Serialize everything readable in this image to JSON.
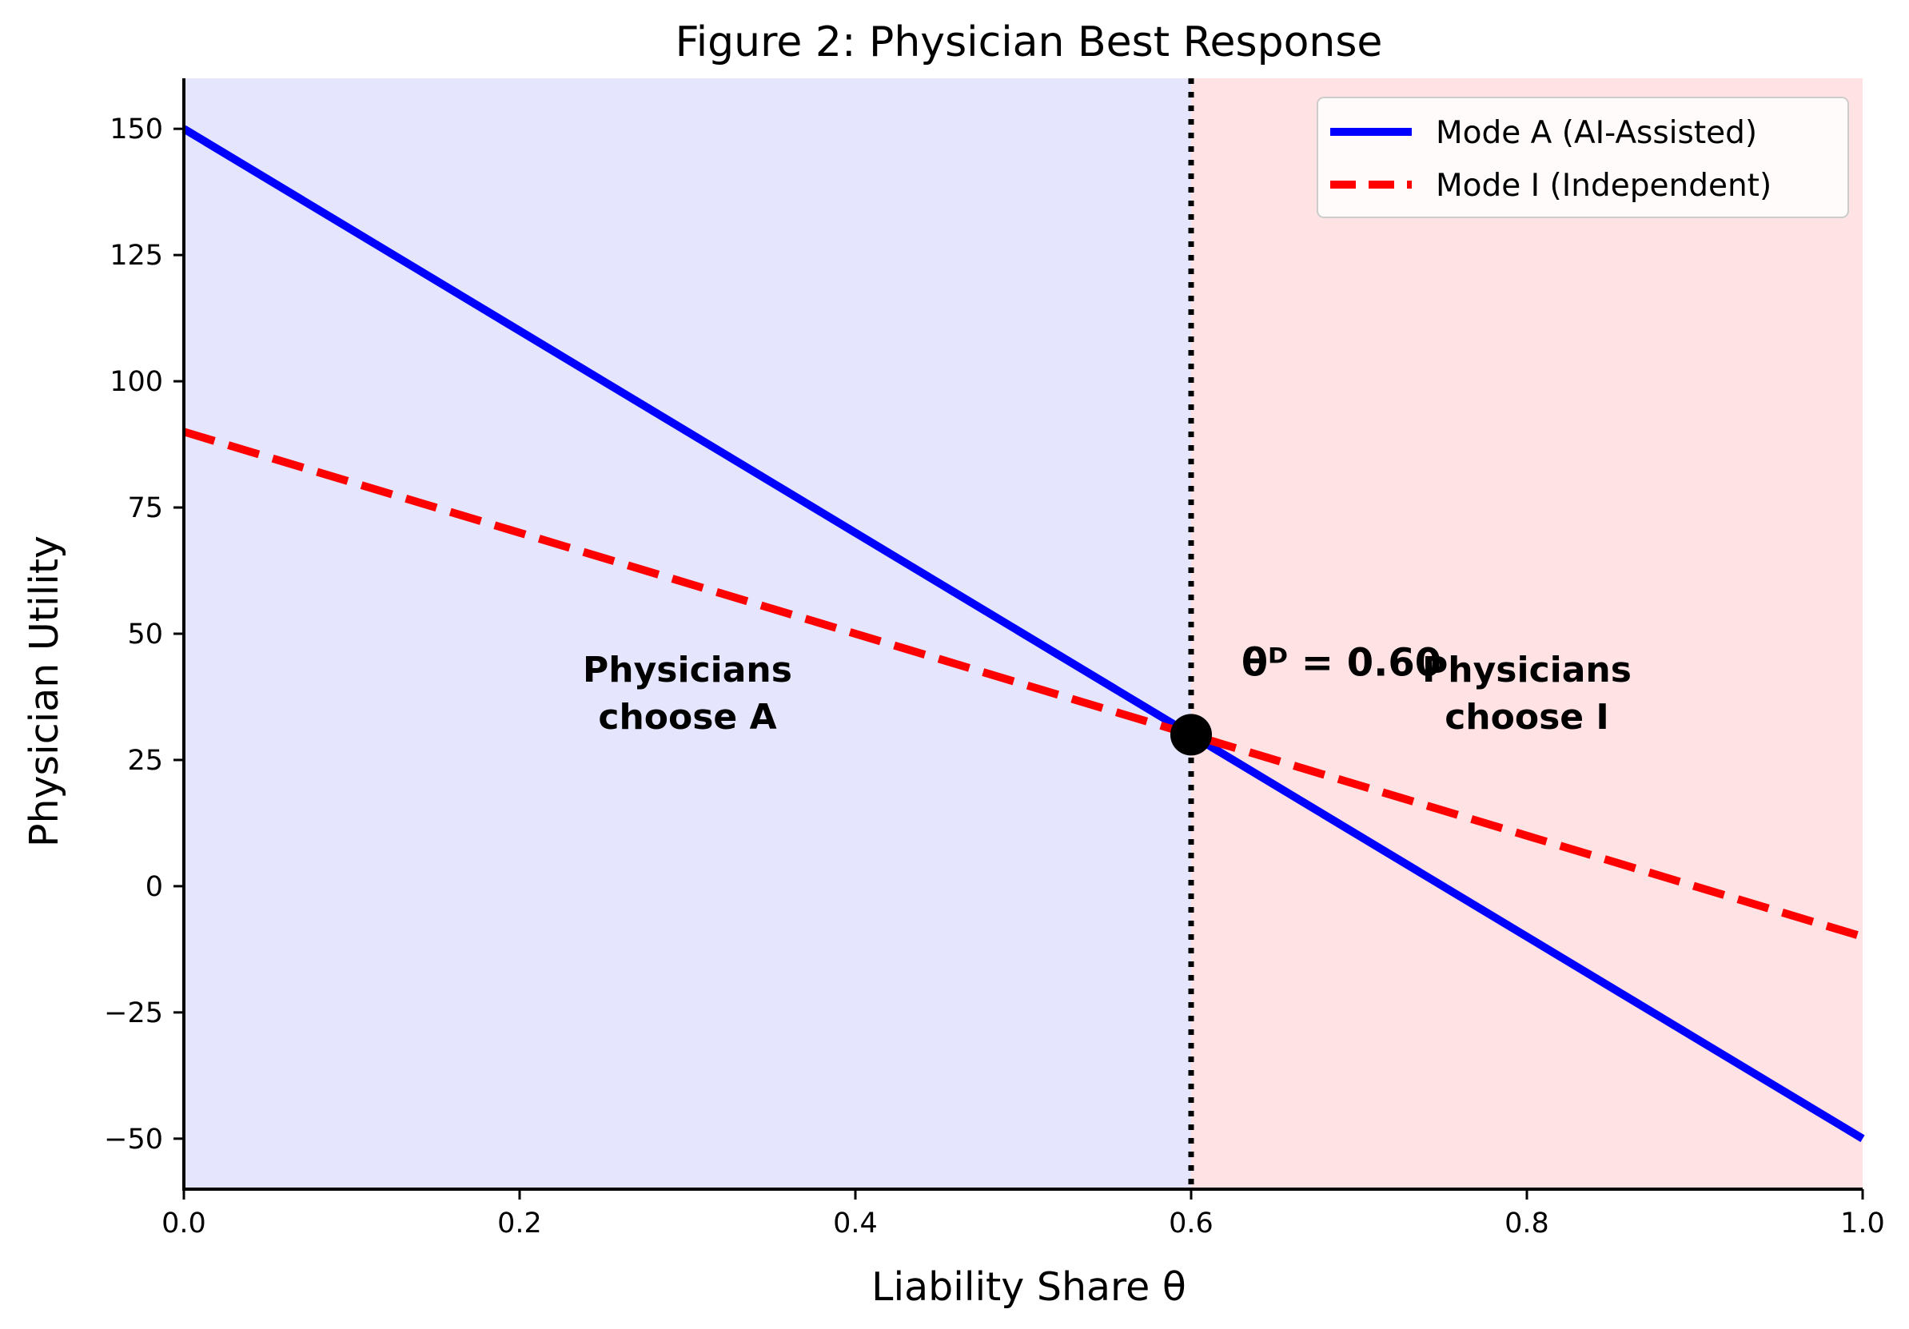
{
  "chart_data": {
    "type": "line",
    "title": "Figure 2: Physician Best Response",
    "xlabel": "Liability Share θ",
    "ylabel": "Physician Utility",
    "xlim": [
      0,
      1
    ],
    "ylim": [
      -60,
      160
    ],
    "x_ticks": [
      0.0,
      0.2,
      0.4,
      0.6,
      0.8,
      1.0
    ],
    "x_tick_labels": [
      "0.0",
      "0.2",
      "0.4",
      "0.6",
      "0.8",
      "1.0"
    ],
    "y_ticks": [
      150,
      125,
      100,
      75,
      50,
      25,
      0,
      -25,
      -50
    ],
    "y_tick_labels": [
      "150",
      "125",
      "100",
      "75",
      "50",
      "25",
      "0",
      "−25",
      "−50"
    ],
    "grid": false,
    "legend_position": "top-right",
    "series": [
      {
        "name": "Mode A (AI-Assisted)",
        "style": "solid",
        "color": "#0000ff",
        "x": [
          0,
          1
        ],
        "y": [
          150,
          -50
        ]
      },
      {
        "name": "Mode I (Independent)",
        "style": "dashed",
        "color": "#ff0000",
        "x": [
          0,
          1
        ],
        "y": [
          90,
          -10
        ]
      }
    ],
    "regions": [
      {
        "x_range": [
          0,
          0.6
        ],
        "color": "#e5e5fd",
        "label_lines": [
          "Physicians",
          "choose A"
        ],
        "label_x": 0.3,
        "label_y": 37
      },
      {
        "x_range": [
          0.6,
          1.0
        ],
        "color": "#fee2e4",
        "label_lines": [
          "Physicians",
          "choose I"
        ],
        "label_x": 0.8,
        "label_y": 37
      }
    ],
    "threshold": {
      "x": 0.6,
      "y": 30,
      "label": "θᴰ = 0.60",
      "label_x": 0.63,
      "label_y": 42
    }
  }
}
